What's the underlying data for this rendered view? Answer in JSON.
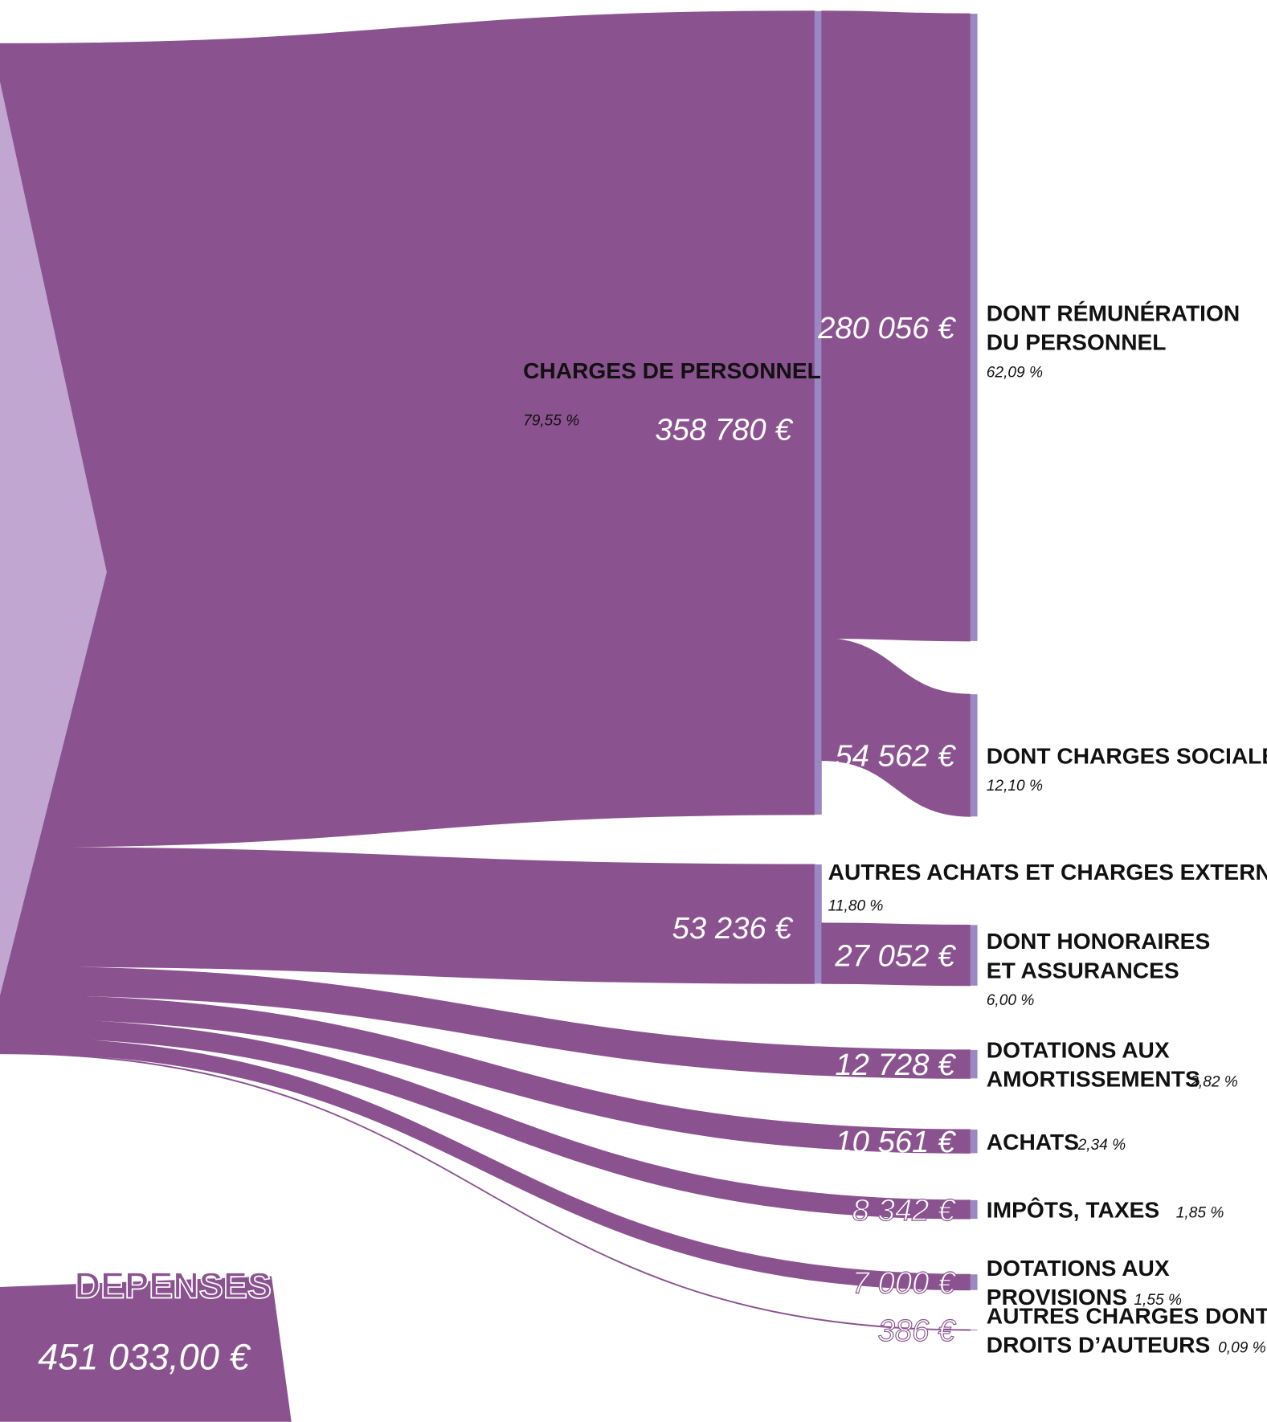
{
  "chart_data": {
    "type": "sankey",
    "title": "DEPENSES",
    "total": 451033,
    "total_label": "451 033,00 €",
    "color": "#8a538f",
    "source_color": "#c0a6d1",
    "node_color": "#9b87c2",
    "nodes": [
      {
        "name": [
          "CHARGES DE PERSONNEL"
        ],
        "value": 358780,
        "value_label": "358 780 €",
        "share": 79.55,
        "share_label": "79,55 %",
        "children": [
          {
            "name": [
              "DONT RÉMUNÉRATION",
              "DU PERSONNEL"
            ],
            "value": 280056,
            "value_label": "280 056 €",
            "share": 62.09,
            "share_label": "62,09 %"
          },
          {
            "name": [
              "DONT CHARGES SOCIALES"
            ],
            "value": 54562,
            "value_label": "54 562 €",
            "share": 12.1,
            "share_label": "12,10 %"
          }
        ]
      },
      {
        "name": [
          "AUTRES ACHATS ET CHARGES EXTERNES"
        ],
        "value": 53236,
        "value_label": "53 236 €",
        "share": 11.8,
        "share_label": "11,80 %",
        "children": [
          {
            "name": [
              "DONT HONORAIRES",
              "ET ASSURANCES"
            ],
            "value": 27052,
            "value_label": "27 052 €",
            "share": 6.0,
            "share_label": "6,00 %"
          }
        ]
      },
      {
        "name": [
          "DOTATIONS AUX",
          "AMORTISSEMENTS"
        ],
        "value": 12728,
        "value_label": "12 728 €",
        "share": 2.82,
        "share_label": "2,82 %"
      },
      {
        "name": [
          "ACHATS"
        ],
        "value": 10561,
        "value_label": "10 561 €",
        "share": 2.34,
        "share_label": "2,34 %"
      },
      {
        "name": [
          "IMPÔTS, TAXES"
        ],
        "value": 8342,
        "value_label": "8 342 €",
        "share": 1.85,
        "share_label": "1,85 %"
      },
      {
        "name": [
          "DOTATIONS AUX",
          "PROVISIONS"
        ],
        "value": 7000,
        "value_label": "7 000 €",
        "share": 1.55,
        "share_label": "1,55 %"
      },
      {
        "name": [
          "AUTRES CHARGES DONT",
          "DROITS D’AUTEURS"
        ],
        "value": 386,
        "value_label": "386 €",
        "share": 0.09,
        "share_label": "0,09 %"
      }
    ]
  }
}
